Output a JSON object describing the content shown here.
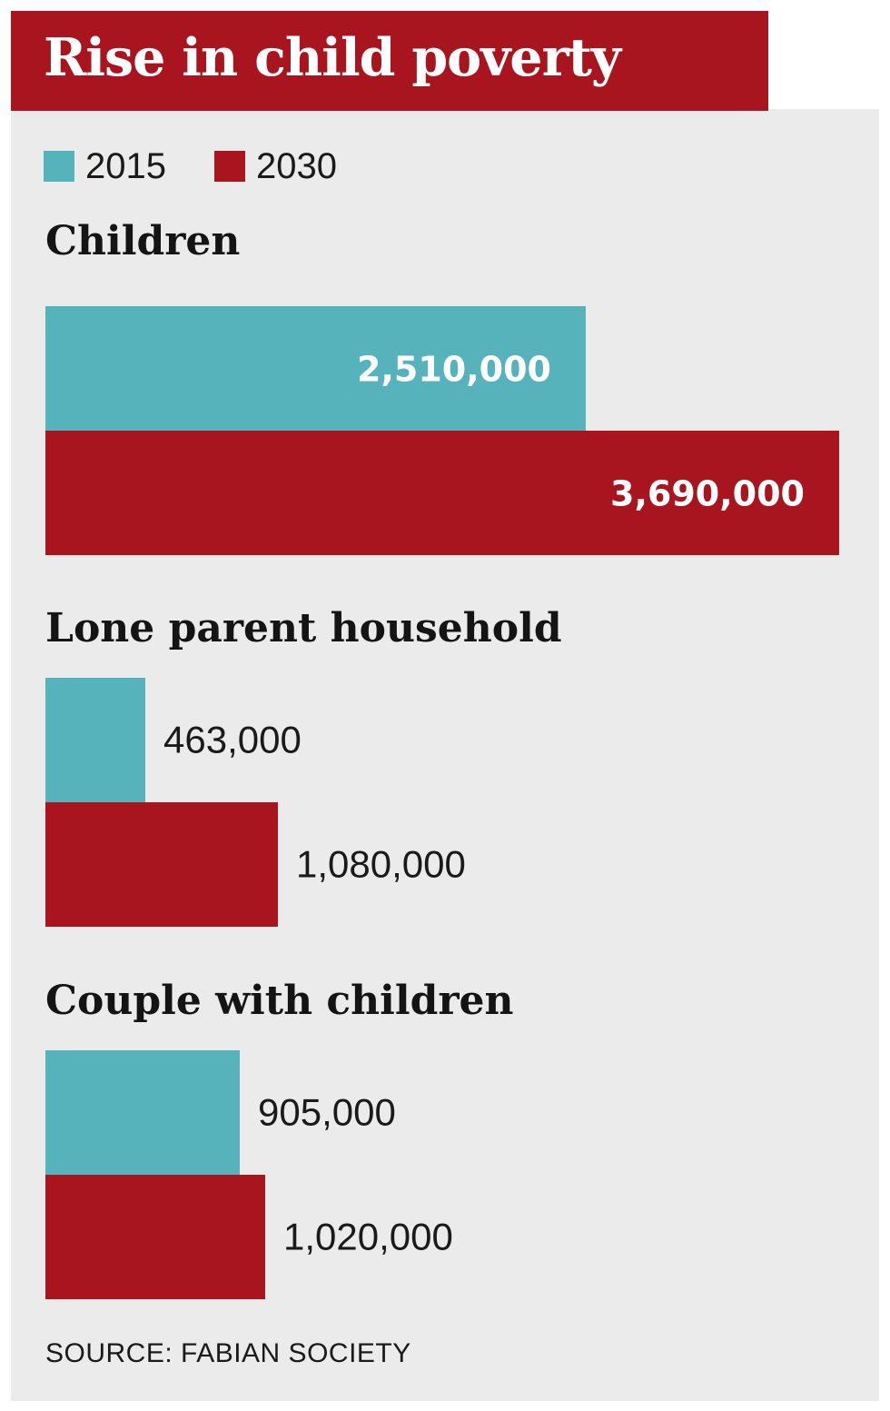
{
  "chart_data": {
    "type": "bar",
    "orientation": "horizontal",
    "title": "Rise in child poverty",
    "source": "SOURCE: FABIAN SOCIETY",
    "series_names": [
      "2015",
      "2030"
    ],
    "colors": {
      "2015": "#56b3bc",
      "2030": "#a8151f",
      "title_bg": "#a8151f",
      "panel_bg": "#ebebeb"
    },
    "legend_placement": "top-left",
    "grid": false,
    "groups": [
      {
        "label": "Children",
        "values": [
          2510000,
          3690000
        ],
        "value_labels": [
          "2,510,000",
          "3,690,000"
        ]
      },
      {
        "label": "Lone parent household",
        "values": [
          463000,
          1080000
        ],
        "value_labels": [
          "463,000",
          "1,080,000"
        ]
      },
      {
        "label": "Couple with children",
        "values": [
          905000,
          1020000
        ],
        "value_labels": [
          "905,000",
          "1,020,000"
        ]
      }
    ],
    "xlim": [
      0,
      3690000
    ]
  }
}
